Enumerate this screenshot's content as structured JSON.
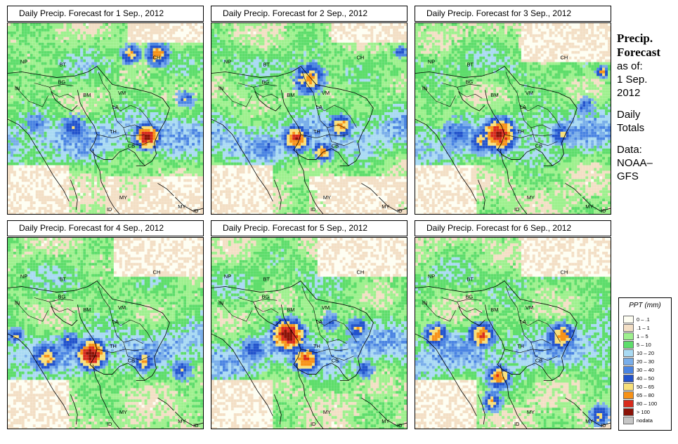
{
  "panels": [
    {
      "title": "Daily Precip. Forecast for  1 Sep., 2012",
      "storm": 0
    },
    {
      "title": "Daily Precip. Forecast for  2 Sep., 2012",
      "storm": 1
    },
    {
      "title": "Daily Precip. Forecast for  3 Sep., 2012",
      "storm": 2
    },
    {
      "title": "Daily Precip. Forecast for  4 Sep., 2012",
      "storm": 3
    },
    {
      "title": "Daily Precip. Forecast for  5 Sep., 2012",
      "storm": 4
    },
    {
      "title": "Daily Precip. Forecast for  6 Sep., 2012",
      "storm": 5
    }
  ],
  "country_labels": [
    "NP",
    "BT",
    "BG",
    "IN",
    "BM",
    "VM",
    "LA",
    "TH",
    "CB",
    "CH",
    "MY",
    "ID",
    "MY",
    "ID"
  ],
  "side": {
    "title1": "Precip.",
    "title2": "Forecast",
    "asof": "as of:",
    "date1": "1 Sep.",
    "date2": "2012",
    "daily1": "Daily",
    "daily2": "Totals",
    "data1": "Data:",
    "data2": "NOAA–",
    "data3": "GFS"
  },
  "legend": {
    "title": "PPT (mm)",
    "items": [
      {
        "label": "0 – .1",
        "color": "#fefef2"
      },
      {
        "label": ".1 – 1",
        "color": "#f3dfc5"
      },
      {
        "label": "1 – 5",
        "color": "#9ef08e"
      },
      {
        "label": "5 – 10",
        "color": "#5edd6b"
      },
      {
        "label": "10 – 20",
        "color": "#a9daf3"
      },
      {
        "label": "20 – 30",
        "color": "#79aeea"
      },
      {
        "label": "30 – 40",
        "color": "#4a84e2"
      },
      {
        "label": "40 – 50",
        "color": "#2253cc"
      },
      {
        "label": "50 – 65",
        "color": "#f8e07a"
      },
      {
        "label": "65 – 80",
        "color": "#f79218"
      },
      {
        "label": "80 – 100",
        "color": "#d82b1c"
      },
      {
        "label": "> 100",
        "color": "#8a1207"
      },
      {
        "label": "nodata",
        "color": "#c6c6c6"
      }
    ]
  }
}
